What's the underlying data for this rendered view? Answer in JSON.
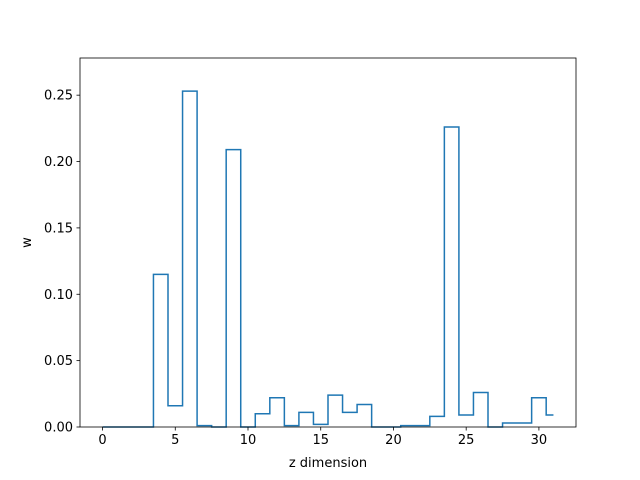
{
  "chart_data": {
    "type": "line",
    "drawstyle": "steps-mid",
    "title": "",
    "xlabel": "z dimension",
    "ylabel": "w",
    "xlim": [
      -1.55,
      32.55
    ],
    "ylim": [
      0,
      0.278
    ],
    "xticks": [
      0,
      5,
      10,
      15,
      20,
      25,
      30
    ],
    "xtick_labels": [
      "0",
      "5",
      "10",
      "15",
      "20",
      "25",
      "30"
    ],
    "yticks": [
      0,
      0.05,
      0.1,
      0.15,
      0.2,
      0.25
    ],
    "ytick_labels": [
      "0.00",
      "0.05",
      "0.10",
      "0.15",
      "0.20",
      "0.25"
    ],
    "grid": false,
    "legend": "none",
    "color": "#1f77b4",
    "x": [
      0,
      1,
      2,
      3,
      4,
      5,
      6,
      7,
      8,
      9,
      10,
      11,
      12,
      13,
      14,
      15,
      16,
      17,
      18,
      19,
      20,
      21,
      22,
      23,
      24,
      25,
      26,
      27,
      28,
      29,
      30,
      31
    ],
    "y": [
      0,
      0,
      0,
      0,
      0.115,
      0.016,
      0.253,
      0.001,
      0,
      0.209,
      0,
      0.01,
      0.022,
      0.001,
      0.011,
      0.002,
      0.024,
      0.011,
      0.017,
      0,
      0,
      0.001,
      0.001,
      0.008,
      0.226,
      0.009,
      0.026,
      0,
      0.003,
      0.003,
      0.022,
      0.009
    ]
  }
}
